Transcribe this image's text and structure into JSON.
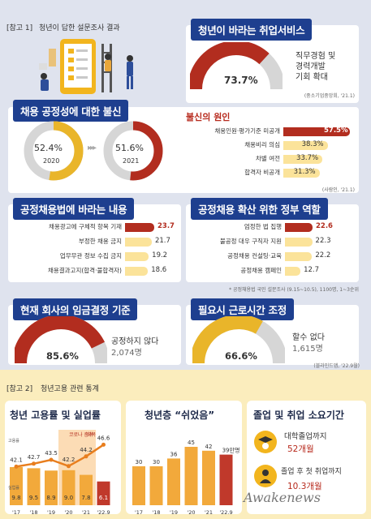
{
  "section1": {
    "label": "[참고 1]",
    "title": "청년이 답한 설문조사 결과"
  },
  "job_service": {
    "title": "청년이 바라는 취업서비스",
    "value": "73.7%",
    "fraction": 0.737,
    "desc1": "직무경험 및",
    "desc2": "경력개발",
    "desc3": "기회 확대",
    "source": "(중소기업중앙회, '21.1)"
  },
  "fairness": {
    "title": "채용 공정성에 대한 불신",
    "y2020": {
      "value": "52.4%",
      "year": "2020",
      "fraction": 0.524
    },
    "y2021": {
      "value": "51.6%",
      "year": "2021",
      "fraction": 0.516
    }
  },
  "distrust_causes": {
    "title": "불신의 원인",
    "items": [
      {
        "label": "채용인원·평가기준 미공개",
        "value": "57.5%",
        "num": 57.5
      },
      {
        "label": "채용비리 의심",
        "value": "38.3%",
        "num": 38.3
      },
      {
        "label": "차별 여전",
        "value": "33.7%",
        "num": 33.7
      },
      {
        "label": "합격자 비공개",
        "value": "31.3%",
        "num": 31.3
      }
    ],
    "source": "(사람인, '21.1)"
  },
  "fair_law": {
    "title": "공정채용법에 바라는 내용",
    "items": [
      {
        "label": "채용광고에 구체적 항목 기재",
        "value": "23.7",
        "num": 23.7
      },
      {
        "label": "부정한 채용 금지",
        "value": "21.7",
        "num": 21.7
      },
      {
        "label": "업무무관 정보 수집 금지",
        "value": "19.2",
        "num": 19.2
      },
      {
        "label": "채용결과고지(합격·불합격자)",
        "value": "18.6",
        "num": 18.6
      }
    ]
  },
  "gov_role": {
    "title": "공정채용 확산 위한 정부 역할",
    "items": [
      {
        "label": "엄정한 법 집행",
        "value": "22.6",
        "num": 22.6
      },
      {
        "label": "불공정 대우 구직자 지원",
        "value": "22.3",
        "num": 22.3
      },
      {
        "label": "공정채용 컨설팅·교육",
        "value": "22.2",
        "num": 22.2
      },
      {
        "label": "공정채용 캠페인",
        "value": "12.7",
        "num": 12.7
      }
    ]
  },
  "survey_note": "* 공정채용법 국민 설문조사 (9.15~10.5), 1100명, 1~3순위",
  "wage": {
    "title": "현재 회사의 임금결정 기준",
    "value": "85.6%",
    "fraction": 0.856,
    "desc": "공정하지 않다",
    "count": "2,074명"
  },
  "worktime": {
    "title": "필요시 근로시간 조정",
    "value": "66.6%",
    "fraction": 0.666,
    "desc": "할수 없다",
    "count": "1,615명",
    "source": "(블라인드앱, '22.9월)"
  },
  "section2": {
    "label": "[참고 2]",
    "title": "청년고용 관련 통계"
  },
  "employment": {
    "title": "청년 고용률 및 실업률",
    "emp_label": "고용률",
    "unemp_label": "실업률",
    "covid": "코로나 충격",
    "recovery": "회복",
    "years": [
      "'17",
      "'18",
      "'19",
      "'20",
      "'21",
      "'22.9"
    ],
    "emp": [
      42.1,
      42.7,
      43.5,
      42.2,
      44.2,
      46.6
    ],
    "unemp": [
      9.8,
      9.5,
      8.9,
      9.0,
      7.8,
      6.1
    ]
  },
  "rested": {
    "title": "청년층 “쉬었음”",
    "years": [
      "'17",
      "'18",
      "'19",
      "'20",
      "'21",
      "'22.9"
    ],
    "values": [
      30,
      30,
      36,
      45,
      42,
      39
    ],
    "value_labels": [
      "30",
      "30",
      "36",
      "45",
      "42",
      "39만명"
    ]
  },
  "time_needed": {
    "title": "졸업 및 취업 소요기간",
    "grad_label": "대학졸업까지",
    "grad_value": "52개월",
    "job_label": "졸업 후 첫 취업까지",
    "job_value": "10.3개월"
  },
  "watermark": "Awakenews"
}
